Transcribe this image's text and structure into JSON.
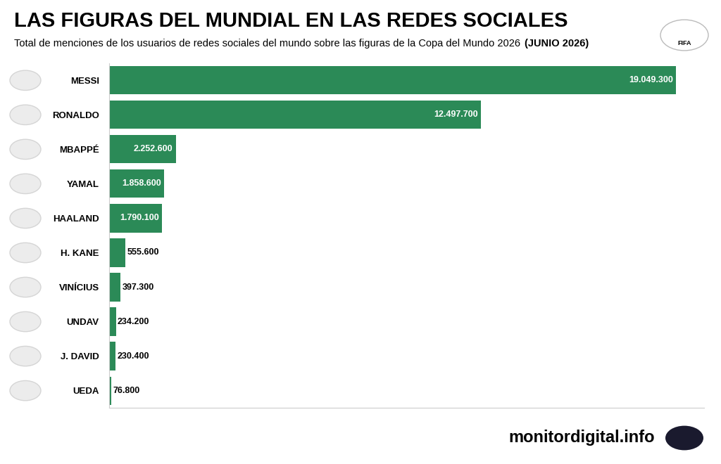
{
  "chart_data": {
    "type": "bar",
    "title": "LAS FIGURAS DEL MUNDIAL EN LAS REDES SOCIALES",
    "subtitle": "Total de menciones de los usuarios de redes sociales del mundo sobre las figuras de la Copa del Mundo 2026",
    "period": "(JUNIO 2026)",
    "badge": "FIFA",
    "source": "monitordigital.info",
    "orientation": "horizontal",
    "categories": [
      "MESSI",
      "RONALDO",
      "MBAPPÉ",
      "YAMAL",
      "HAALAND",
      "H. KANE",
      "VINÍCIUS",
      "UNDAV",
      "J. DAVID",
      "UEDA"
    ],
    "values": [
      19049300,
      12497700,
      2252600,
      1858600,
      1790100,
      555600,
      397300,
      234200,
      230400,
      76800
    ],
    "value_labels": [
      "19.049.300",
      "12.497.700",
      "2.252.600",
      "1.858.600",
      "1.790.100",
      "555.600",
      "397.300",
      "234.200",
      "230.400",
      "76.800"
    ],
    "data_labels": true,
    "color": "#2b8a57",
    "xlim": [
      0,
      20000000
    ],
    "tick_labels": "y",
    "grid": false
  }
}
